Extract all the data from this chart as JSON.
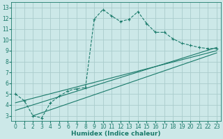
{
  "xlabel": "Humidex (Indice chaleur)",
  "bg_color": "#cce8e8",
  "grid_color": "#aacccc",
  "line_color": "#1a7a6a",
  "xlim": [
    -0.5,
    23.5
  ],
  "ylim": [
    2.5,
    13.5
  ],
  "xticks": [
    0,
    1,
    2,
    3,
    4,
    5,
    6,
    7,
    8,
    9,
    10,
    11,
    12,
    13,
    14,
    15,
    16,
    17,
    18,
    19,
    20,
    21,
    22,
    23
  ],
  "yticks": [
    3,
    4,
    5,
    6,
    7,
    8,
    9,
    10,
    11,
    12,
    13
  ],
  "curve1_x": [
    0,
    1,
    2,
    3,
    4,
    5,
    6,
    7,
    8,
    9,
    10,
    11,
    12,
    13,
    14,
    15,
    16,
    17,
    18,
    19,
    20,
    21,
    22,
    23
  ],
  "curve1_y": [
    5,
    4.4,
    3,
    2.8,
    4.2,
    4.8,
    5.3,
    5.5,
    5.6,
    11.9,
    12.8,
    12.2,
    11.7,
    11.9,
    12.6,
    11.5,
    10.7,
    10.7,
    10.1,
    9.7,
    9.5,
    9.3,
    9.2,
    9.2
  ],
  "line1_x": [
    0,
    23
  ],
  "line1_y": [
    3.5,
    9.3
  ],
  "line2_x": [
    0,
    23
  ],
  "line2_y": [
    4.2,
    9.0
  ],
  "line3_x": [
    2,
    23
  ],
  "line3_y": [
    3.0,
    8.8
  ]
}
